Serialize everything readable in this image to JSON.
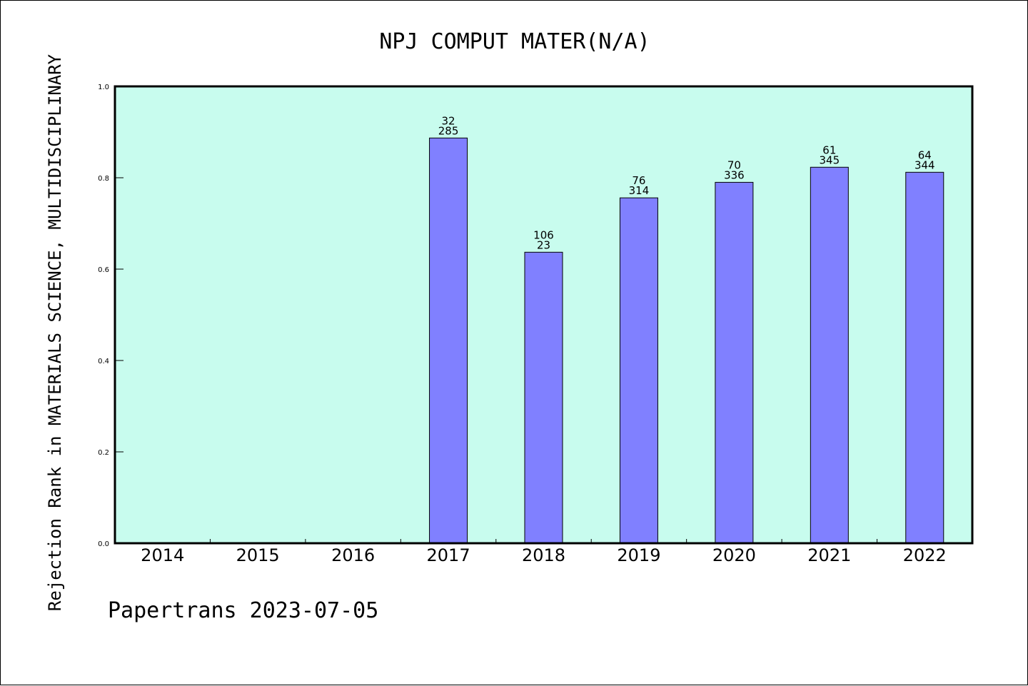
{
  "chart_data": {
    "type": "bar",
    "title": "NPJ COMPUT MATER(N/A)",
    "xlabel": "",
    "ylabel": "Rejection Rank in MATERIALS SCIENCE, MULTIDISCIPLINARY",
    "ylim": [
      0,
      1.0
    ],
    "yticks": [
      "0.0",
      "0.2",
      "0.4",
      "0.6",
      "0.8",
      "1.0"
    ],
    "categories": [
      "2014",
      "2015",
      "2016",
      "2017",
      "2018",
      "2019",
      "2020",
      "2021",
      "2022"
    ],
    "values": [
      null,
      null,
      null,
      0.887,
      0.637,
      0.756,
      0.79,
      0.823,
      0.812
    ],
    "bar_labels": [
      null,
      null,
      null,
      [
        "32",
        "285"
      ],
      [
        "106",
        "23"
      ],
      [
        "76",
        "314"
      ],
      [
        "70",
        "336"
      ],
      [
        "61",
        "345"
      ],
      [
        "64",
        "344"
      ]
    ],
    "grid": false,
    "colors": {
      "plot_bg": "#c8fcee",
      "bar": "#8080ff"
    }
  },
  "footer": {
    "text": "Papertrans 2023-07-05"
  }
}
